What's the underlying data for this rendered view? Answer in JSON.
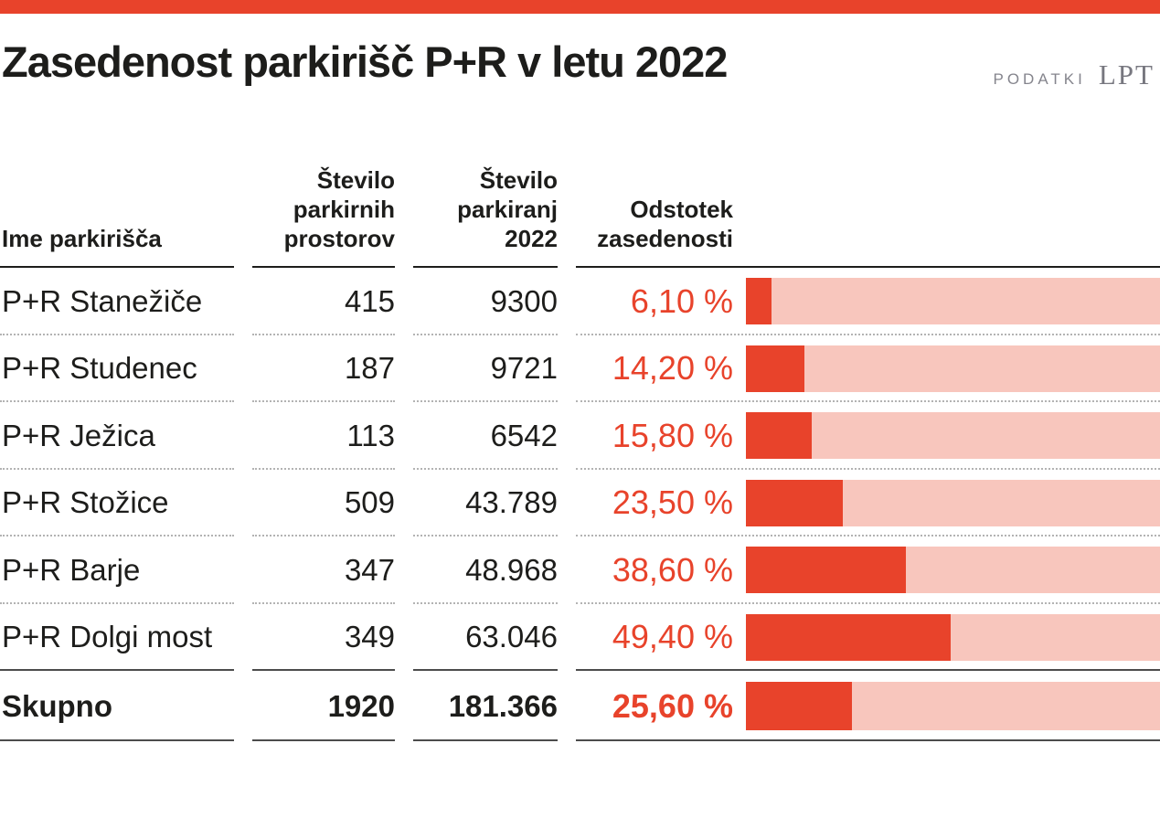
{
  "colors": {
    "accent": "#e8432b",
    "bar_track": "#f8c6bd",
    "text": "#1d1d1b",
    "source_gray": "#85858d"
  },
  "header": {
    "title": "Zasedenost parkirišč P+R v letu 2022",
    "source_prefix": "PODATKI",
    "source_name": "LPT"
  },
  "table": {
    "columns": [
      {
        "label": "Ime parkirišča",
        "lines": [
          "Ime parkirišča"
        ]
      },
      {
        "label": "Število parkirnih prostorov",
        "lines": [
          "Število",
          "parkirnih",
          "prostorov"
        ]
      },
      {
        "label": "Število parkiranj 2022",
        "lines": [
          "Število",
          "parkiranj",
          "2022"
        ]
      },
      {
        "label": "Odstotek zasedenosti",
        "lines": [
          "Odstotek",
          "zasedenosti"
        ]
      }
    ],
    "rows": [
      {
        "name": "P+R Stanežiče",
        "spaces": "415",
        "parkings": "9300",
        "pct_label": "6,10 %",
        "pct": 6.1
      },
      {
        "name": "P+R Studenec",
        "spaces": "187",
        "parkings": "9721",
        "pct_label": "14,20 %",
        "pct": 14.2
      },
      {
        "name": "P+R Ježica",
        "spaces": "113",
        "parkings": "6542",
        "pct_label": "15,80 %",
        "pct": 15.8
      },
      {
        "name": "P+R Stožice",
        "spaces": "509",
        "parkings": "43.789",
        "pct_label": "23,50 %",
        "pct": 23.5
      },
      {
        "name": "P+R Barje",
        "spaces": "347",
        "parkings": "48.968",
        "pct_label": "38,60 %",
        "pct": 38.6
      },
      {
        "name": "P+R Dolgi most",
        "spaces": "349",
        "parkings": "63.046",
        "pct_label": "49,40 %",
        "pct": 49.4
      },
      {
        "name": "Skupno",
        "spaces": "1920",
        "parkings": "181.366",
        "pct_label": "25,60 %",
        "pct": 25.6,
        "total": true
      }
    ]
  },
  "chart_data": {
    "type": "bar",
    "title": "Zasedenost parkirišč P+R v letu 2022",
    "source": "PODATKI LPT",
    "categories": [
      "P+R Stanežiče",
      "P+R Studenec",
      "P+R Ježica",
      "P+R Stožice",
      "P+R Barje",
      "P+R Dolgi most",
      "Skupno"
    ],
    "series": [
      {
        "name": "Število parkirnih prostorov",
        "values": [
          415,
          187,
          113,
          509,
          347,
          349,
          1920
        ]
      },
      {
        "name": "Število parkiranj 2022",
        "values": [
          9300,
          9721,
          6542,
          43789,
          48968,
          63046,
          181366
        ]
      },
      {
        "name": "Odstotek zasedenosti",
        "values": [
          6.1,
          14.2,
          15.8,
          23.5,
          38.6,
          49.4,
          25.6
        ]
      }
    ],
    "bar_series": "Odstotek zasedenosti",
    "xlim": [
      0,
      100
    ],
    "orientation": "horizontal",
    "grid": false,
    "legend_position": "none"
  }
}
